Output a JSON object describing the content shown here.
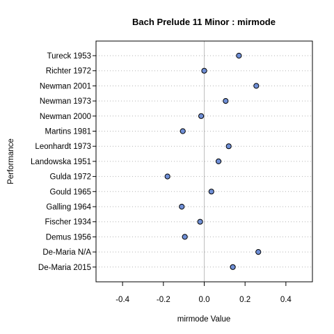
{
  "chart_data": {
    "type": "scatter",
    "title": "Bach Prelude 11 Minor : mirmode",
    "xlabel": "mirmode Value",
    "ylabel": "Performance",
    "xlim": [
      -0.53,
      0.53
    ],
    "x_ticks": [
      -0.4,
      -0.2,
      0.0,
      0.2,
      0.4
    ],
    "x_tick_labels": [
      "-0.4",
      "-0.2",
      "0.0",
      "0.2",
      "0.4"
    ],
    "reference_line_x": 0.0,
    "grid": "horizontal dotted",
    "categories": [
      "Tureck 1953",
      "Richter 1972",
      "Newman 2001",
      "Newman 1973",
      "Newman 2000",
      "Martins 1981",
      "Leonhardt 1973",
      "Landowska 1951",
      "Gulda 1972",
      "Gould 1965",
      "Galling 1964",
      "Fischer 1934",
      "Demus 1956",
      "De-Maria N/A",
      "De-Maria 2015"
    ],
    "values": [
      0.17,
      0.0,
      0.255,
      0.105,
      -0.015,
      -0.105,
      0.12,
      0.07,
      -0.18,
      0.035,
      -0.11,
      -0.02,
      -0.095,
      0.265,
      0.14
    ],
    "point_fill": "#6f8fd6",
    "point_stroke": "#000000",
    "grid_color": "#b3b3b3",
    "ref_line_color": "#bebebe"
  }
}
